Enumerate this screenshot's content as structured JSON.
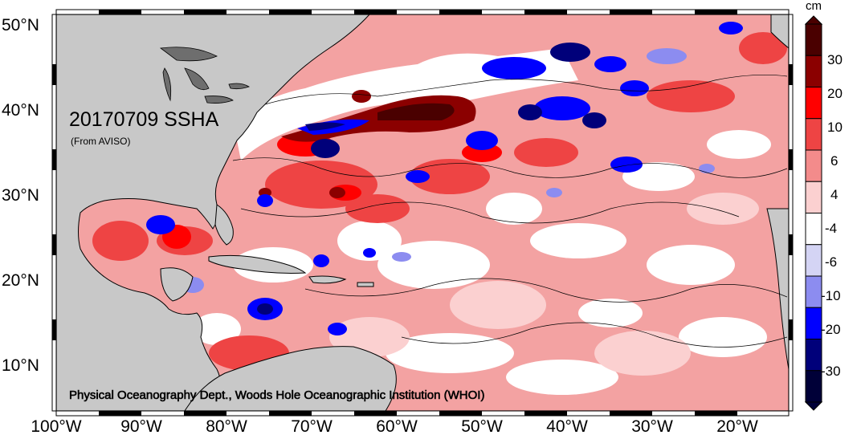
{
  "map": {
    "title": "20170709 SSHA",
    "source": "(From AVISO)",
    "credit": "Physical Oceanography Dept., Woods Hole Oceanographic Institution (WHOI)",
    "lon_labels": [
      "100°W",
      "90°W",
      "80°W",
      "70°W",
      "60°W",
      "50°W",
      "40°W",
      "30°W",
      "20°W"
    ],
    "lat_labels": [
      "50°N",
      "40°N",
      "30°N",
      "20°N",
      "10°N"
    ]
  },
  "colorbar": {
    "unit": "cm",
    "tick_labels": [
      "30",
      "20",
      "10",
      "6",
      "4",
      "-4",
      "-6",
      "-10",
      "-20",
      "-30"
    ],
    "colors": [
      "#4a0000",
      "#8b0000",
      "#ff0000",
      "#ee4444",
      "#f38b8b",
      "#fbd0d0",
      "#ffffff",
      "#d4d4f4",
      "#8c8cf0",
      "#0000ff",
      "#00007a",
      "#000038"
    ]
  },
  "colors": {
    "land": "#c8c8c8",
    "lakes": "#6e6e6e",
    "ocean_base": "#f3a2a2"
  }
}
